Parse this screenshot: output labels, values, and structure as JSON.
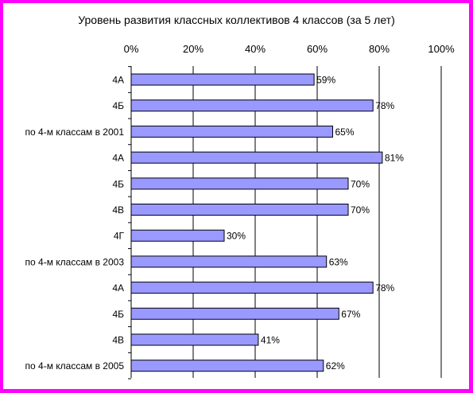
{
  "chart_data": {
    "type": "bar",
    "orientation": "horizontal",
    "title": "Уровень развития классных коллективов 4 классов (за 5 лет)",
    "categories": [
      "4А",
      "4Б",
      "по 4-м классам в 2001",
      "4А",
      "4Б",
      "4В",
      "4Г",
      "по 4-м классам в 2003",
      "4А",
      "4Б",
      "4В",
      "по 4-м классам в 2005"
    ],
    "values": [
      59,
      78,
      65,
      81,
      70,
      70,
      30,
      63,
      78,
      67,
      41,
      62
    ],
    "data_labels": [
      "59%",
      "78%",
      "65%",
      "81%",
      "70%",
      "70%",
      "30%",
      "63%",
      "78%",
      "67%",
      "41%",
      "62%"
    ],
    "x_ticks": [
      0,
      20,
      40,
      60,
      80,
      100
    ],
    "x_tick_labels": [
      "0%",
      "20%",
      "40%",
      "60%",
      "80%",
      "100%"
    ],
    "xlim": [
      0,
      100
    ],
    "x_axis_position": "top",
    "grid": true,
    "legend": "none",
    "colors": {
      "bar_fill": "#9999ff",
      "bar_stroke": "#000000",
      "frame_border": "#ff00ff",
      "background": "#ffffff",
      "gridline": "#000000"
    }
  }
}
